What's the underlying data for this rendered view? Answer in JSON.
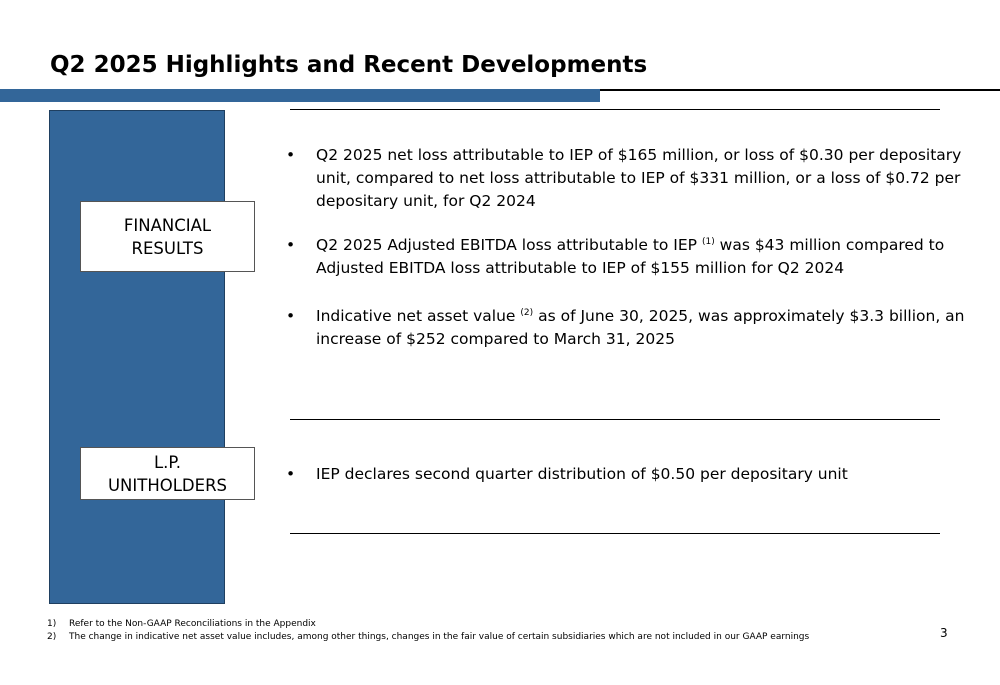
{
  "slide": {
    "title": "Q2 2025 Highlights and Recent Developments",
    "page_number": "3",
    "colors": {
      "accent": "#336699"
    }
  },
  "sections": {
    "financial": {
      "label_line1": "FINANCIAL",
      "label_line2": "RESULTS",
      "bullets": [
        {
          "text": "Q2 2025 net loss attributable to IEP of $165 million, or loss of $0.30 per depositary unit, compared to net loss attributable to IEP of $331 million, or a loss of $0.72 per depositary unit, for Q2 2024"
        },
        {
          "pre": "Q2 2025 Adjusted EBITDA loss attributable to IEP",
          "sup": "(1)",
          "post": " was $43 million compared to Adjusted EBITDA loss attributable to IEP of $155 million for Q2 2024"
        },
        {
          "pre": "Indicative net asset value",
          "sup": "(2)",
          "post": " as of June 30, 2025, was approximately $3.3 billion, an increase of $252 compared to March 31, 2025"
        }
      ]
    },
    "lp": {
      "label_line1": "L.P.",
      "label_line2": "UNITHOLDERS",
      "bullets": [
        {
          "text": "IEP declares second quarter distribution of $0.50 per depositary unit"
        }
      ]
    }
  },
  "bullet_symbol": "•",
  "footnotes": [
    {
      "num": "1)",
      "text": "Refer to the Non-GAAP Reconciliations in the Appendix"
    },
    {
      "num": "2)",
      "text": "The change in indicative net asset value includes, among other things, changes in the fair value of certain subsidiaries which are not included in our GAAP earnings"
    }
  ]
}
